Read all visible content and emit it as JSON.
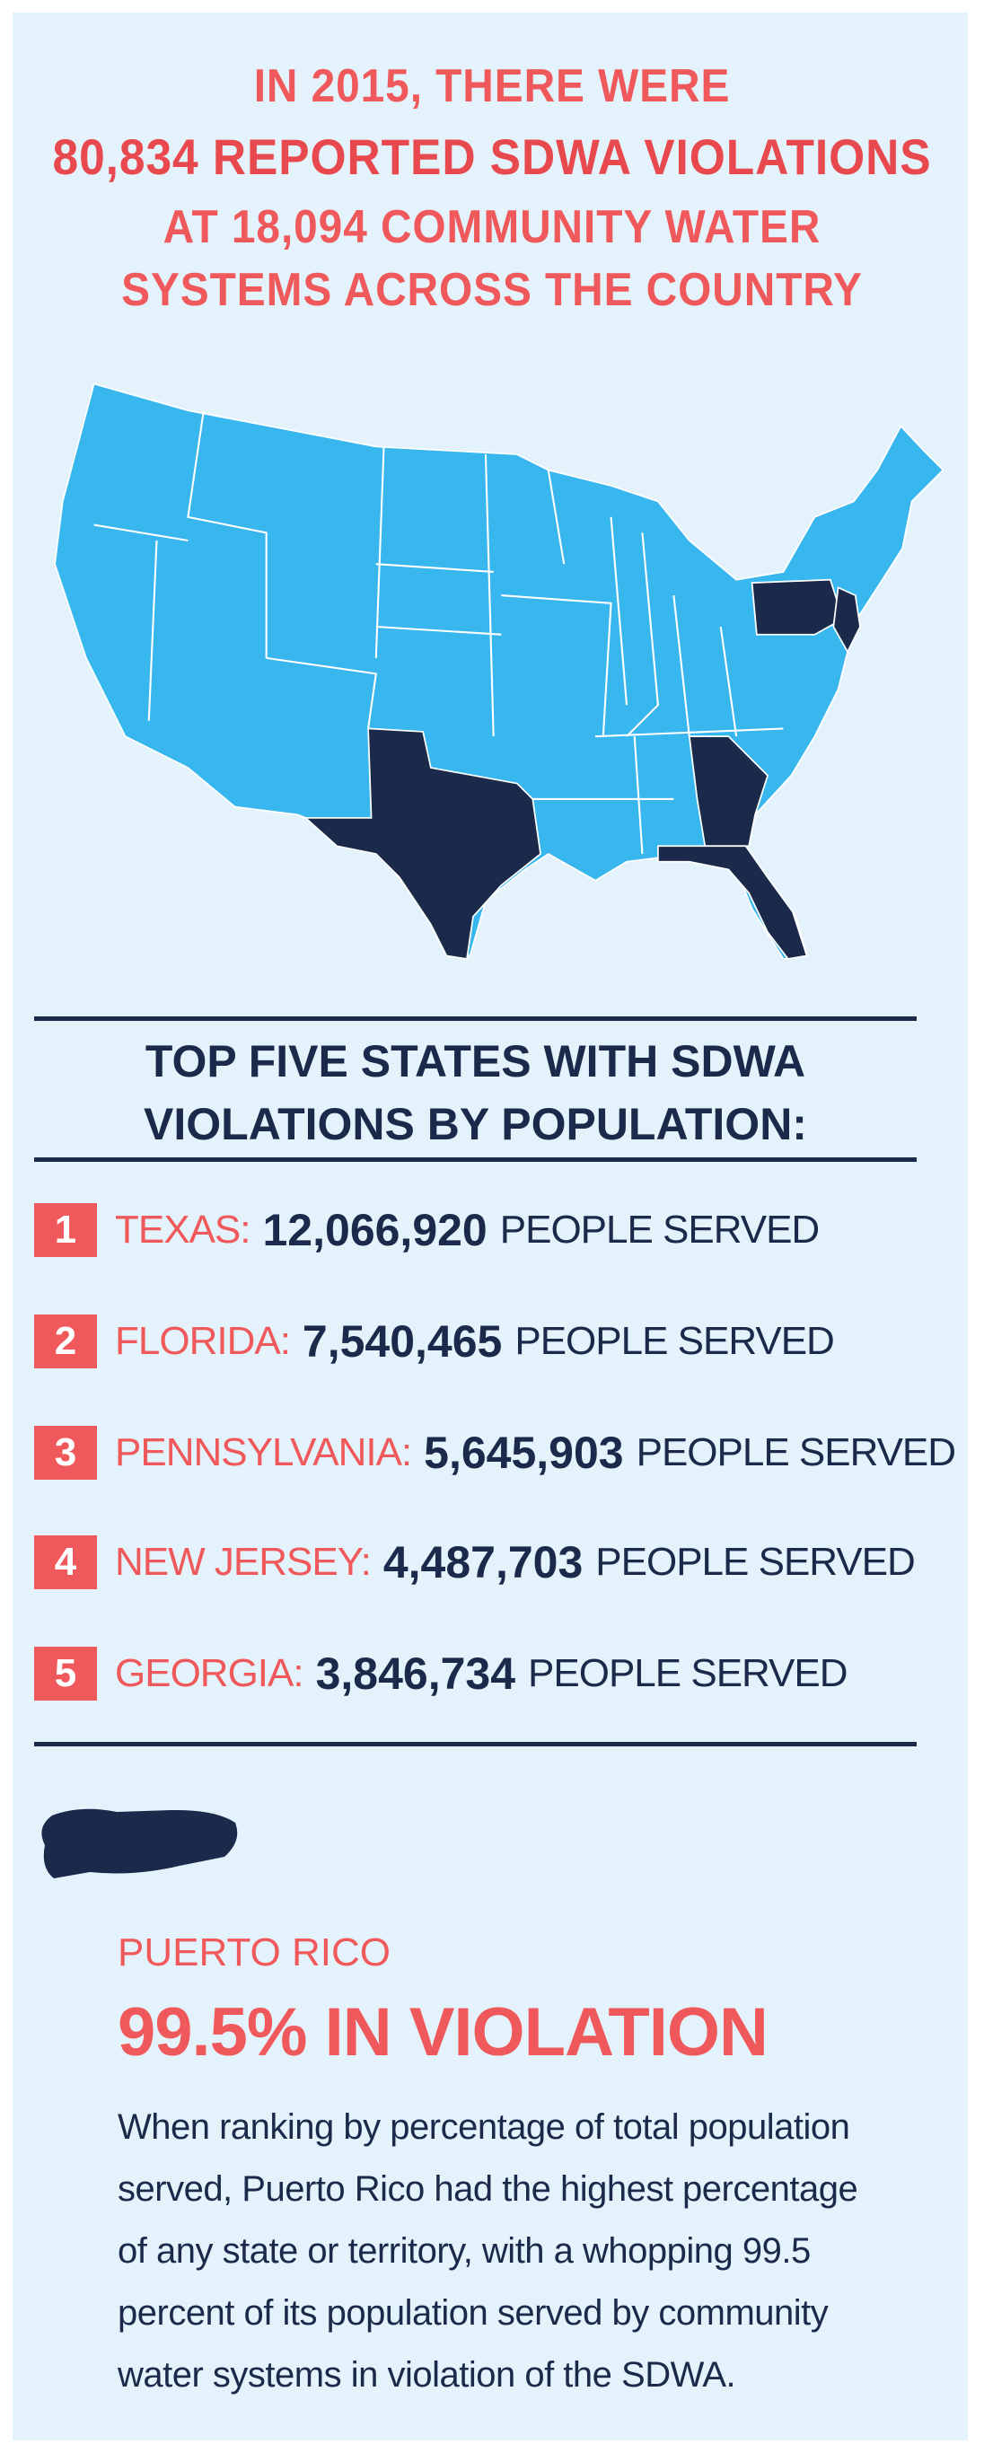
{
  "header": {
    "lines": [
      "IN 2015, THERE WERE",
      "80,834 REPORTED SDWA VIOLATIONS",
      "AT 18,094 COMMUNITY WATER",
      "SYSTEMS ACROSS THE COUNTRY"
    ]
  },
  "top_states": {
    "title_lines": [
      "TOP FIVE STATES WITH SDWA",
      "VIOLATIONS BY POPULATION:"
    ],
    "items": [
      {
        "rank": "1",
        "state": "TEXAS:",
        "people": "12,066,920",
        "suffix": "PEOPLE SERVED"
      },
      {
        "rank": "2",
        "state": "FLORIDA:",
        "people": "7,540,465",
        "suffix": "PEOPLE SERVED"
      },
      {
        "rank": "3",
        "state": "PENNSYLVANIA:",
        "people": "5,645,903",
        "suffix": "PEOPLE SERVED"
      },
      {
        "rank": "4",
        "state": "NEW JERSEY:",
        "people": "4,487,703",
        "suffix": "PEOPLE SERVED"
      },
      {
        "rank": "5",
        "state": "GEORGIA:",
        "people": "3,846,734",
        "suffix": "PEOPLE SERVED"
      }
    ]
  },
  "puerto_rico": {
    "label": "PUERTO RICO",
    "headline": "99.5% IN VIOLATION",
    "body": "When ranking by percentage of total population served, Puerto Rico had the highest percentage of any state or territory, with a whopping 99.5 percent of its population served by community water systems in violation of the SDWA."
  }
}
